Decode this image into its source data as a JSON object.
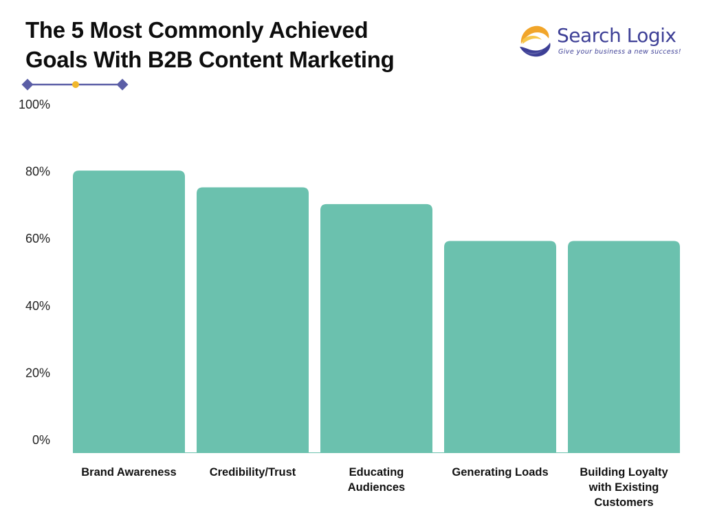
{
  "header": {
    "title_line1": "The 5 Most Commonly Achieved",
    "title_line2": "Goals With B2B Content Marketing"
  },
  "logo": {
    "name": "Search Logix",
    "tagline": "Give your business a new success!",
    "icon": "swirl-logo-icon"
  },
  "colors": {
    "bar": "#6bc1ae",
    "accent": "#5b5ea6",
    "dot": "#f1b82d",
    "title": "#0d0d0d"
  },
  "chart_data": {
    "type": "bar",
    "title": "The 5 Most Commonly Achieved Goals With B2B Content Marketing",
    "xlabel": "",
    "ylabel": "",
    "categories": [
      [
        "Brand Awareness"
      ],
      [
        "Credibility/Trust"
      ],
      [
        "Educating",
        "Audiences"
      ],
      [
        "Generating Loads"
      ],
      [
        "Building Loyalty",
        "with Existing",
        "Customers"
      ]
    ],
    "values": [
      84,
      79,
      74,
      63,
      63
    ],
    "ylim": [
      0,
      100
    ],
    "yticks": [
      "0%",
      "20%",
      "40%",
      "60%",
      "80%",
      "100%"
    ],
    "grid": false,
    "legend": "none"
  }
}
